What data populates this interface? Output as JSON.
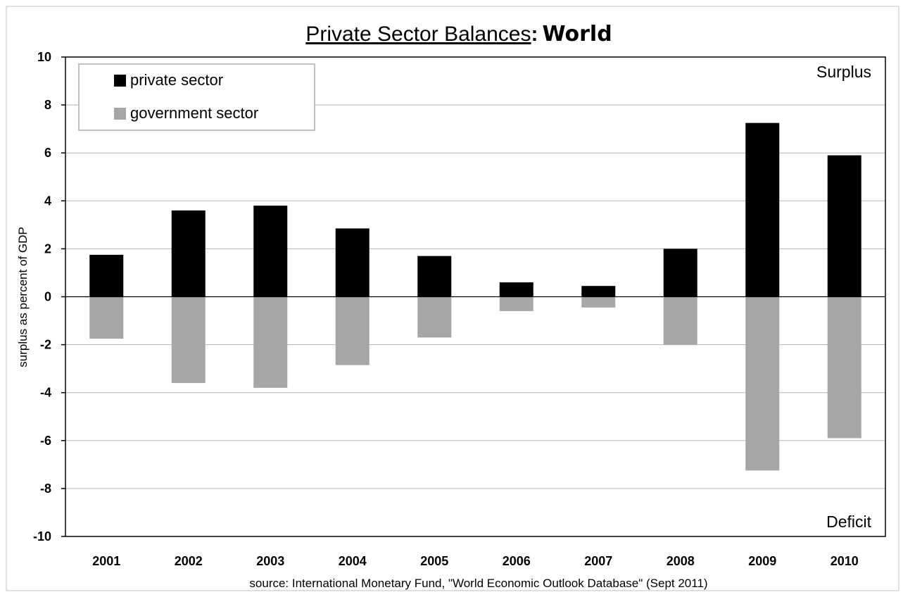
{
  "chart_data": {
    "type": "bar",
    "title_part1": "Private Sector Balances",
    "title_sep": ":",
    "title_part2": "World",
    "xlabel": "",
    "ylabel": "surplus as percent of GDP",
    "ylim": [
      -10,
      10
    ],
    "yticks": [
      10,
      8,
      6,
      4,
      2,
      0,
      -2,
      -4,
      -6,
      -8,
      -10
    ],
    "categories": [
      "2001",
      "2002",
      "2003",
      "2004",
      "2005",
      "2006",
      "2007",
      "2008",
      "2009",
      "2010"
    ],
    "series": [
      {
        "name": "private sector",
        "color": "#000000",
        "values": [
          1.75,
          3.6,
          3.8,
          2.85,
          1.7,
          0.6,
          0.45,
          2.0,
          7.25,
          5.9
        ]
      },
      {
        "name": "government sector",
        "color": "#a6a6a6",
        "values": [
          -1.75,
          -3.6,
          -3.8,
          -2.85,
          -1.7,
          -0.6,
          -0.45,
          -2.0,
          -7.25,
          -5.9
        ]
      }
    ],
    "annotations": {
      "top_right": "Surplus",
      "bottom_right": "Deficit"
    },
    "source": "source:  International  Monetary  Fund,  \"World  Economic  Outlook  Database\"  (Sept 2011)",
    "grid": true,
    "legend_position": "top-left"
  }
}
